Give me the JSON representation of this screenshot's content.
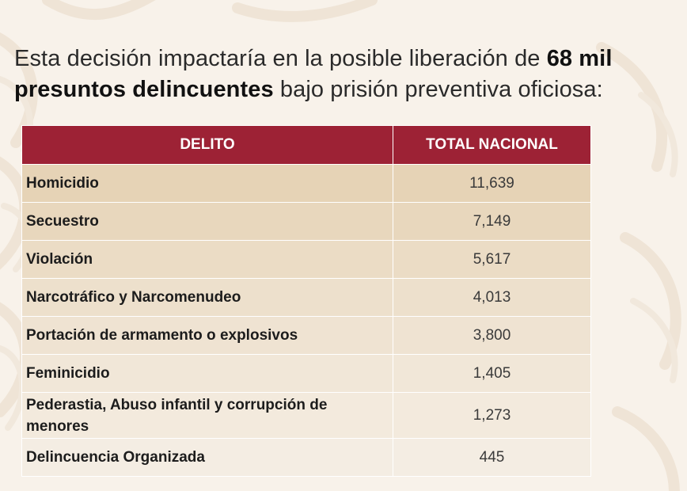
{
  "headline": {
    "part1": "Esta decisión impactaría en la posible liberación de ",
    "bold1": "68 mil",
    "bold2": "presuntos delincuentes",
    "part2": " bajo prisión preventiva oficiosa:"
  },
  "table": {
    "headers": [
      "DELITO",
      "TOTAL NACIONAL"
    ],
    "rows": [
      {
        "delito": "Homicidio",
        "total": "11,639"
      },
      {
        "delito": "Secuestro",
        "total": "7,149"
      },
      {
        "delito": "Violación",
        "total": "5,617"
      },
      {
        "delito": "Narcotráfico y Narcomenudeo",
        "total": "4,013"
      },
      {
        "delito": "Portación de armamento o explosivos",
        "total": "3,800"
      },
      {
        "delito": "Feminicidio",
        "total": "1,405"
      },
      {
        "delito": "Pederastia, Abuso infantil y corrupción de menores",
        "total": "1,273"
      },
      {
        "delito": "Delincuencia Organizada",
        "total": "445"
      }
    ]
  },
  "colors": {
    "header_bg": "#9d2235",
    "header_text": "#ffffff",
    "page_bg": "#f8f2ea"
  }
}
